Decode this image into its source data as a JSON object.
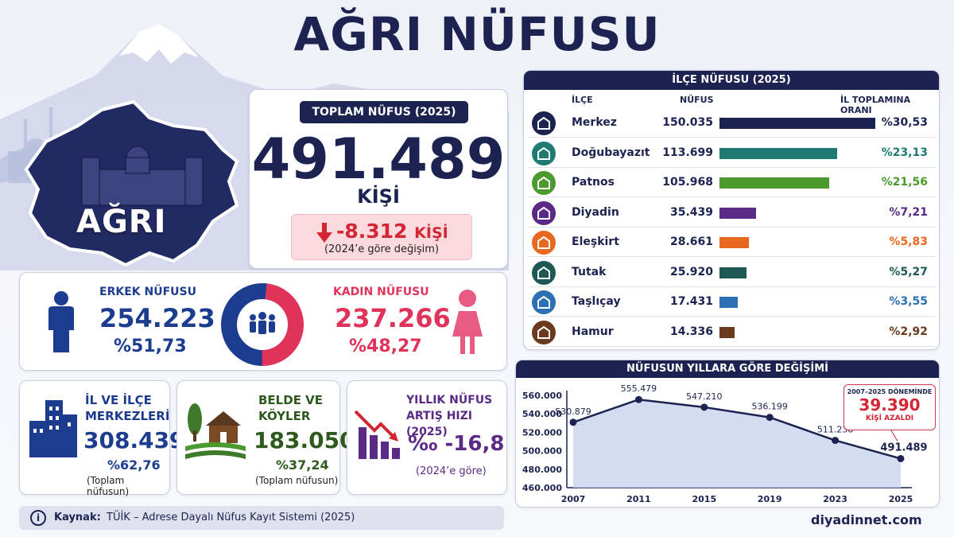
{
  "title": "AĞRI NÜFUSU",
  "province": {
    "label": "AĞRI"
  },
  "total": {
    "header": "TOPLAM NÜFUS (2025)",
    "value": "491.489",
    "unit": "KİŞİ",
    "change": {
      "value": "-8.312",
      "unit": "KİŞİ",
      "note": "(2024’e göre değişim)"
    }
  },
  "gender": {
    "male": {
      "label": "ERKEK NÜFUSU",
      "value": "254.223",
      "pct": "%51,73",
      "share": 51.73
    },
    "female": {
      "label": "KADIN NÜFUSU",
      "value": "237.266",
      "pct": "%48,27",
      "share": 48.27
    }
  },
  "centers": {
    "title_line1": "İL VE İLÇE",
    "title_line2": "MERKEZLERİ",
    "value": "308.439",
    "pct": "%62,76",
    "note": "(Toplam nüfusun)"
  },
  "villages": {
    "title_line1": "BELDE VE",
    "title_line2": "KÖYLER",
    "value": "183.050",
    "pct": "%37,24",
    "note": "(Toplam nüfusun)"
  },
  "growth": {
    "title_line1": "YILLIK NÜFUS",
    "title_line2": "ARTIŞ HIZI (2025)",
    "value": "‰ -16,8",
    "note": "(2024’e göre)"
  },
  "source": {
    "label": "Kaynak:",
    "text": "TÜİK – Adrese Dayalı Nüfus Kayıt Sistemi (2025)",
    "icon": "info-icon"
  },
  "site": "diyadinnet.com",
  "districts": {
    "header": "İLÇE NÜFUSU (2025)",
    "col_district": "İLÇE",
    "col_pop": "NÜFUS",
    "col_ratio": "İL TOPLAMINA ORANI",
    "rows": [
      {
        "name": "Merkez",
        "pop": "150.035",
        "pct": "%30,53",
        "share": 30.53,
        "color": "#1c2350",
        "icon": "city-gate-icon"
      },
      {
        "name": "Doğubayazıt",
        "pop": "113.699",
        "pct": "%23,13",
        "share": 23.13,
        "color": "#1f7a73",
        "icon": "mountain-icon"
      },
      {
        "name": "Patnos",
        "pop": "105.968",
        "pct": "%21,56",
        "share": 21.56,
        "color": "#4a9a2e",
        "icon": "clock-tower-icon"
      },
      {
        "name": "Diyadin",
        "pop": "35.439",
        "pct": "%7,21",
        "share": 7.21,
        "color": "#5b2a86",
        "icon": "mosque-icon"
      },
      {
        "name": "Eleşkirt",
        "pop": "28.661",
        "pct": "%5,83",
        "share": 5.83,
        "color": "#e8681f",
        "icon": "tower-icon"
      },
      {
        "name": "Tutak",
        "pop": "25.920",
        "pct": "%5,27",
        "share": 5.27,
        "color": "#1d5a55",
        "icon": "arch-icon"
      },
      {
        "name": "Taşlıçay",
        "pop": "17.431",
        "pct": "%3,55",
        "share": 3.55,
        "color": "#2c6fb3",
        "icon": "bridge-icon"
      },
      {
        "name": "Hamur",
        "pop": "14.336",
        "pct": "%2,92",
        "share": 2.92,
        "color": "#6b3a1e",
        "icon": "house-icon"
      }
    ]
  },
  "chart_data": {
    "type": "area",
    "title": "NÜFUSUN YILLARA GÖRE DEĞİŞİMİ",
    "x": [
      "2007",
      "2011",
      "2015",
      "2019",
      "2023",
      "2025"
    ],
    "values": [
      530879,
      555479,
      547210,
      536199,
      511238,
      491489
    ],
    "data_labels": [
      "530.879",
      "555.479",
      "547.210",
      "536.199",
      "511.238",
      "491.489"
    ],
    "y_ticks": [
      "560.000",
      "540.000",
      "520.000",
      "500.000",
      "480.000",
      "460.000"
    ],
    "y_tick_values": [
      560000,
      540000,
      520000,
      500000,
      480000,
      460000
    ],
    "ylim": [
      460000,
      560000
    ],
    "grid": false,
    "color": "#1c2350",
    "callout": {
      "line1": "2007–2025 DÖNEMİNDE",
      "value": "39.390",
      "line2": "KİŞİ AZALDI"
    }
  }
}
